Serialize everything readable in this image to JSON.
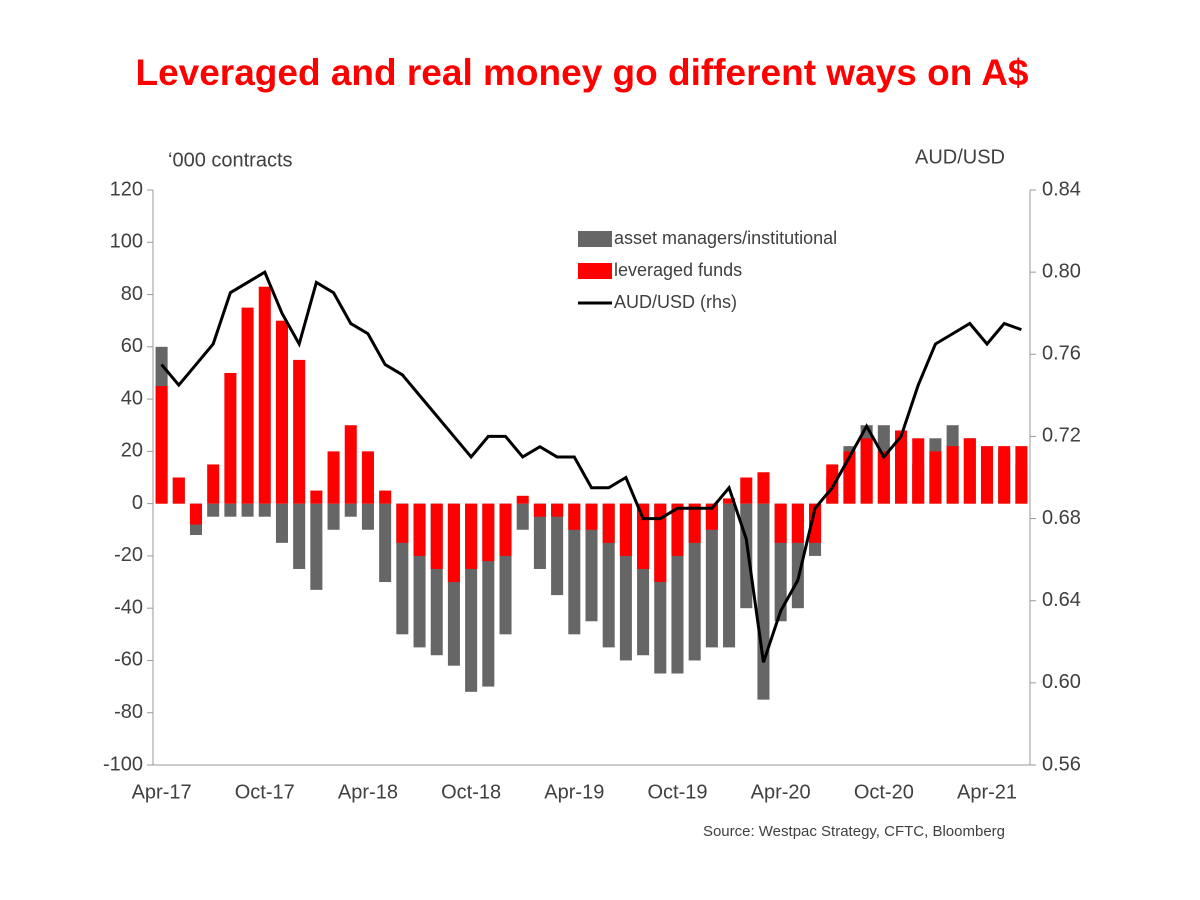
{
  "chart_data": {
    "type": "bar-line",
    "title": "Leveraged and real money go different ways on A$",
    "y_label": "‘000 contracts",
    "y2_label": "AUD/USD",
    "source": "Source: Westpac Strategy, CFTC, Bloomberg",
    "categories": [
      "Apr-17",
      null,
      null,
      null,
      null,
      null,
      "Oct-17",
      null,
      null,
      null,
      null,
      null,
      "Apr-18",
      null,
      null,
      null,
      null,
      null,
      "Oct-18",
      null,
      null,
      null,
      null,
      null,
      "Apr-19",
      null,
      null,
      null,
      null,
      null,
      "Oct-19",
      null,
      null,
      null,
      null,
      null,
      "Apr-20",
      null,
      null,
      null,
      null,
      null,
      "Oct-20",
      null,
      null,
      null,
      null,
      null,
      "Apr-21",
      null,
      null
    ],
    "series": [
      {
        "name": "asset managers/institutional",
        "type": "bar",
        "color": "#666666",
        "values": [
          60,
          10,
          -12,
          -5,
          -5,
          -5,
          -5,
          -15,
          -25,
          -33,
          -10,
          -5,
          -10,
          -30,
          -50,
          -55,
          -58,
          -62,
          -72,
          -70,
          -50,
          -10,
          -25,
          -35,
          -50,
          -45,
          -55,
          -60,
          -58,
          -65,
          -65,
          -60,
          -55,
          -55,
          -40,
          -75,
          -45,
          -40,
          -20,
          10,
          22,
          30,
          30,
          25,
          15,
          25,
          30,
          25,
          20,
          20,
          15
        ]
      },
      {
        "name": "leveraged funds",
        "type": "bar",
        "color": "#ff0000",
        "values": [
          45,
          10,
          -8,
          15,
          50,
          75,
          83,
          70,
          55,
          5,
          20,
          30,
          20,
          5,
          -15,
          -20,
          -25,
          -30,
          -25,
          -22,
          -20,
          3,
          -5,
          -5,
          -10,
          -10,
          -15,
          -20,
          -25,
          -30,
          -20,
          -15,
          -10,
          2,
          10,
          12,
          -15,
          -15,
          -15,
          15,
          20,
          25,
          20,
          28,
          25,
          20,
          22,
          25,
          22,
          22,
          22
        ]
      },
      {
        "name": "AUD/USD (rhs)",
        "type": "line",
        "axis": "y2",
        "color": "#000000",
        "values": [
          0.755,
          0.745,
          0.755,
          0.765,
          0.79,
          0.795,
          0.8,
          0.78,
          0.765,
          0.795,
          0.79,
          0.775,
          0.77,
          0.755,
          0.75,
          0.74,
          0.73,
          0.72,
          0.71,
          0.72,
          0.72,
          0.71,
          0.715,
          0.71,
          0.71,
          0.695,
          0.695,
          0.7,
          0.68,
          0.68,
          0.685,
          0.685,
          0.685,
          0.695,
          0.67,
          0.61,
          0.635,
          0.65,
          0.685,
          0.695,
          0.71,
          0.725,
          0.71,
          0.72,
          0.745,
          0.765,
          0.77,
          0.775,
          0.765,
          0.775,
          0.772
        ]
      }
    ],
    "ylim": [
      -100,
      120
    ],
    "yticks": [
      -100,
      -80,
      -60,
      -40,
      -20,
      0,
      20,
      40,
      60,
      80,
      100,
      120
    ],
    "y2lim": [
      0.56,
      0.84
    ],
    "y2ticks": [
      0.56,
      {
        "value": 0.6,
        "label": "0.60"
      },
      0.64,
      0.68,
      0.72,
      0.76,
      {
        "value": 0.8,
        "label": "0.80"
      },
      0.84
    ]
  }
}
